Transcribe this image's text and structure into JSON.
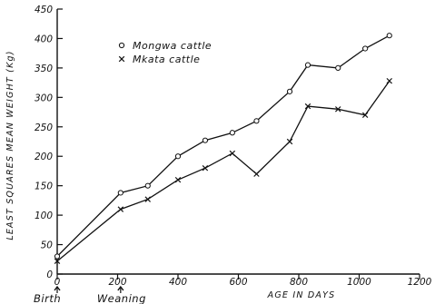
{
  "chart_data": {
    "type": "line",
    "title": "",
    "xlabel": "AGE IN DAYS",
    "ylabel": "LEAST SQUARES MEAN WEIGHT (Kg)",
    "xlim": [
      0,
      1200
    ],
    "ylim": [
      0,
      450
    ],
    "x_ticks": [
      0,
      200,
      400,
      600,
      800,
      1000,
      1200
    ],
    "y_ticks": [
      0,
      50,
      100,
      150,
      200,
      250,
      300,
      350,
      400,
      450
    ],
    "grid": false,
    "legend_position": "top-left",
    "series": [
      {
        "name": "Mongwa cattle",
        "marker": "o",
        "x": [
          0,
          210,
          300,
          400,
          490,
          580,
          660,
          770,
          830,
          930,
          1020,
          1100
        ],
        "y": [
          30,
          138,
          150,
          200,
          227,
          240,
          260,
          310,
          355,
          350,
          383,
          405
        ]
      },
      {
        "name": "Mkata cattle",
        "marker": "x",
        "x": [
          0,
          210,
          300,
          400,
          490,
          580,
          660,
          770,
          830,
          930,
          1020,
          1100
        ],
        "y": [
          22,
          110,
          127,
          160,
          180,
          205,
          170,
          225,
          285,
          280,
          270,
          328
        ]
      }
    ],
    "annotations": [
      {
        "text": "Birth",
        "x": 0
      },
      {
        "text": "Weaning",
        "x": 210
      }
    ]
  }
}
